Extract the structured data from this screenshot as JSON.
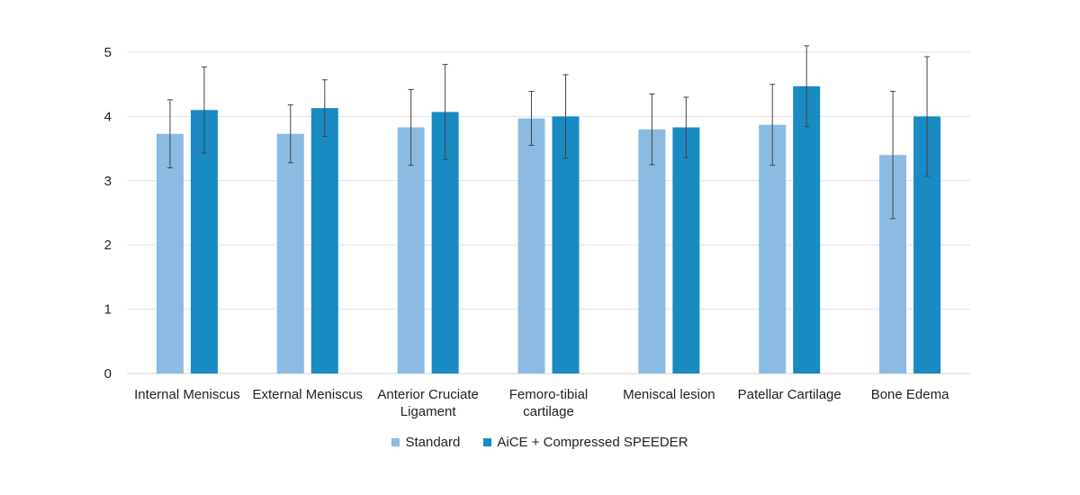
{
  "chart_data": {
    "type": "bar",
    "title": "",
    "xlabel": "",
    "ylabel": "",
    "ylim": [
      0,
      5
    ],
    "yticks": [
      0,
      1,
      2,
      3,
      4,
      5
    ],
    "grid": true,
    "legend_position": "bottom",
    "categories": [
      "Internal Meniscus",
      "External Meniscus",
      "Anterior Cruciate Ligament",
      "Femoro-tibial cartilage",
      "Meniscal lesion",
      "Patellar Cartilage",
      "Bone Edema"
    ],
    "category_lines": [
      [
        "Internal Meniscus"
      ],
      [
        "External Meniscus"
      ],
      [
        "Anterior Cruciate",
        "Ligament"
      ],
      [
        "Femoro-tibial",
        "cartilage"
      ],
      [
        "Meniscal lesion"
      ],
      [
        "Patellar Cartilage"
      ],
      [
        "Bone Edema"
      ]
    ],
    "series": [
      {
        "name": "Standard",
        "color": "#8BBBE2",
        "values": [
          3.73,
          3.73,
          3.83,
          3.97,
          3.8,
          3.87,
          3.4
        ],
        "error": [
          0.53,
          0.45,
          0.59,
          0.42,
          0.55,
          0.63,
          0.99
        ]
      },
      {
        "name": "AiCE + Compressed SPEEDER",
        "color": "#1A8AC2",
        "values": [
          4.1,
          4.13,
          4.07,
          4.0,
          3.83,
          4.47,
          4.0
        ],
        "error": [
          0.67,
          0.44,
          0.74,
          0.65,
          0.47,
          0.63,
          0.93
        ]
      }
    ]
  }
}
